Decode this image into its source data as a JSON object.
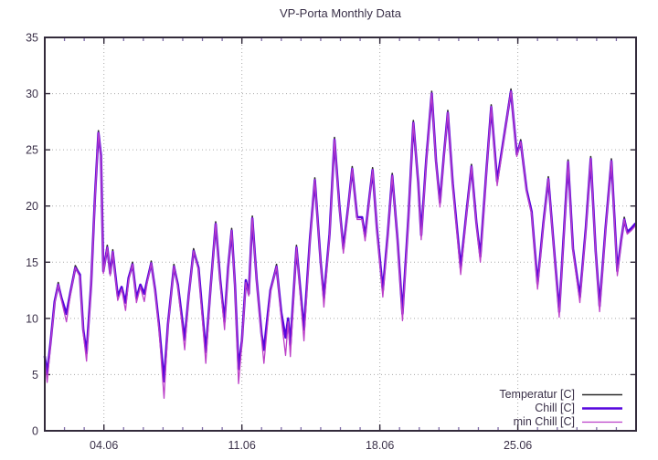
{
  "title": "VP-Porta Monthly Data",
  "legend": {
    "entries": [
      {
        "label": "Temperatur [C]",
        "color": "#2b2b2b",
        "width": 1.6
      },
      {
        "label": "Chill [C]",
        "color": "#5606dd",
        "width": 2.6
      },
      {
        "label": "min Chill [C]",
        "color": "#bb3fc8",
        "width": 1.3
      }
    ]
  },
  "chart_data": {
    "type": "line",
    "title": "VP-Porta Monthly Data",
    "xlabel": "",
    "ylabel": "",
    "x_unit": "day of June (decimal day of month)",
    "xlim": [
      1,
      31
    ],
    "ylim": [
      0,
      35
    ],
    "grid": true,
    "legend_position": "bottom-right",
    "xticks": [
      {
        "day": 4,
        "label": "04.06"
      },
      {
        "day": 11,
        "label": "11.06"
      },
      {
        "day": 18,
        "label": "18.06"
      },
      {
        "day": 25,
        "label": "25.06"
      }
    ],
    "x_minor_step": 1,
    "yticks": [
      0,
      5,
      10,
      15,
      20,
      25,
      30,
      35
    ],
    "x": [
      1.0,
      1.12,
      1.3,
      1.5,
      1.68,
      1.85,
      2.1,
      2.3,
      2.55,
      2.78,
      2.95,
      3.12,
      3.35,
      3.55,
      3.72,
      3.85,
      3.97,
      4.17,
      4.32,
      4.45,
      4.7,
      4.9,
      5.1,
      5.25,
      5.45,
      5.65,
      5.85,
      6.05,
      6.2,
      6.4,
      6.6,
      6.8,
      7.05,
      7.25,
      7.55,
      7.75,
      8.1,
      8.3,
      8.55,
      8.8,
      9.17,
      9.4,
      9.67,
      9.9,
      10.12,
      10.3,
      10.48,
      10.65,
      10.83,
      11.0,
      11.2,
      11.35,
      11.53,
      11.75,
      12.0,
      12.12,
      12.45,
      12.76,
      13.0,
      13.22,
      13.35,
      13.46,
      13.77,
      14.15,
      14.45,
      14.7,
      15.0,
      15.16,
      15.45,
      15.7,
      15.95,
      16.15,
      16.4,
      16.6,
      16.85,
      17.1,
      17.25,
      17.45,
      17.63,
      17.85,
      18.15,
      18.4,
      18.63,
      18.9,
      19.15,
      19.45,
      19.7,
      19.95,
      20.1,
      20.35,
      20.63,
      20.85,
      21.05,
      21.25,
      21.45,
      21.7,
      22.1,
      22.4,
      22.65,
      22.9,
      23.1,
      23.4,
      23.65,
      23.95,
      24.2,
      24.65,
      24.95,
      25.15,
      25.45,
      25.7,
      26.0,
      26.3,
      26.55,
      26.8,
      27.1,
      27.35,
      27.55,
      27.8,
      28.15,
      28.45,
      28.7,
      28.95,
      29.15,
      29.45,
      29.75,
      30.05,
      30.25,
      30.4,
      30.55,
      30.75,
      30.95
    ],
    "series": [
      {
        "name": "Temperatur [C]",
        "color": "#2b2b2b",
        "width": 1.6,
        "values": [
          6.6,
          5.1,
          8.0,
          11.5,
          13.2,
          11.8,
          10.4,
          12.3,
          14.7,
          13.9,
          9.0,
          6.9,
          13.0,
          21.0,
          26.7,
          24.5,
          14.2,
          16.5,
          14.0,
          16.1,
          12.0,
          12.8,
          11.4,
          13.6,
          15.0,
          11.8,
          13.0,
          12.2,
          13.4,
          15.1,
          12.5,
          9.3,
          4.4,
          9.5,
          14.8,
          13.0,
          8.1,
          12.0,
          16.2,
          14.5,
          7.0,
          12.5,
          18.6,
          13.5,
          9.7,
          14.5,
          18.0,
          13.0,
          5.5,
          8.0,
          13.4,
          12.2,
          19.1,
          13.5,
          8.6,
          7.2,
          12.5,
          14.8,
          10.5,
          8.3,
          10.0,
          7.6,
          16.5,
          9.0,
          17.0,
          22.5,
          15.0,
          11.8,
          17.5,
          26.1,
          20.0,
          16.2,
          20.0,
          23.5,
          19.0,
          19.0,
          17.3,
          20.5,
          23.4,
          18.0,
          12.5,
          17.5,
          22.9,
          17.0,
          10.4,
          19.0,
          27.6,
          22.0,
          17.4,
          24.0,
          30.2,
          24.0,
          20.3,
          24.5,
          28.5,
          22.0,
          14.5,
          19.5,
          23.7,
          18.5,
          15.5,
          23.0,
          29.0,
          22.2,
          25.0,
          30.4,
          24.6,
          25.9,
          21.4,
          19.5,
          13.1,
          18.5,
          22.6,
          17.0,
          10.6,
          18.0,
          24.1,
          16.2,
          11.9,
          18.0,
          24.4,
          16.0,
          11.1,
          18.0,
          24.2,
          14.2,
          17.0,
          19.0,
          17.7,
          18.0,
          18.4
        ]
      },
      {
        "name": "Chill [C]",
        "color": "#5606dd",
        "width": 2.6,
        "values": [
          6.6,
          5.1,
          8.0,
          11.5,
          13.0,
          11.8,
          10.4,
          12.3,
          14.5,
          13.9,
          9.0,
          6.9,
          13.0,
          21.0,
          26.5,
          24.5,
          14.2,
          16.3,
          14.0,
          15.9,
          12.0,
          12.8,
          11.4,
          13.6,
          14.8,
          11.8,
          13.0,
          12.2,
          13.4,
          14.9,
          12.5,
          9.3,
          4.4,
          9.5,
          14.6,
          13.0,
          8.1,
          12.0,
          16.0,
          14.5,
          7.0,
          12.5,
          18.4,
          13.5,
          9.7,
          14.5,
          17.8,
          13.0,
          5.5,
          8.0,
          13.4,
          12.2,
          18.9,
          13.5,
          8.6,
          7.2,
          12.5,
          14.6,
          10.5,
          8.3,
          10.0,
          7.6,
          16.3,
          9.0,
          17.0,
          22.3,
          15.0,
          11.8,
          17.5,
          25.9,
          20.0,
          16.2,
          20.0,
          23.3,
          19.0,
          19.0,
          17.3,
          20.5,
          23.2,
          18.0,
          12.5,
          17.5,
          22.7,
          17.0,
          10.4,
          19.0,
          27.4,
          22.0,
          17.4,
          24.0,
          30.0,
          24.0,
          20.3,
          24.5,
          28.3,
          22.0,
          14.5,
          19.5,
          23.5,
          18.5,
          15.5,
          23.0,
          28.8,
          22.2,
          25.0,
          30.2,
          24.6,
          25.7,
          21.4,
          19.5,
          13.1,
          18.5,
          22.4,
          17.0,
          10.6,
          18.0,
          23.9,
          16.2,
          11.9,
          18.0,
          24.2,
          16.0,
          11.1,
          18.0,
          24.0,
          14.2,
          17.0,
          18.8,
          17.7,
          18.0,
          18.4
        ]
      },
      {
        "name": "min Chill [C]",
        "color": "#bb3fc8",
        "width": 1.3,
        "values": [
          6.4,
          4.3,
          7.8,
          11.3,
          13.0,
          11.6,
          9.7,
          12.1,
          14.5,
          13.7,
          8.7,
          6.2,
          12.8,
          20.8,
          26.5,
          24.3,
          14.0,
          16.3,
          13.8,
          15.9,
          11.6,
          12.6,
          10.7,
          13.4,
          14.8,
          11.4,
          12.8,
          11.5,
          13.2,
          14.9,
          12.3,
          8.9,
          2.9,
          9.2,
          14.6,
          12.8,
          7.2,
          11.8,
          16.0,
          14.3,
          6.0,
          12.3,
          18.4,
          13.2,
          9.0,
          14.3,
          17.8,
          12.7,
          4.2,
          7.7,
          13.2,
          12.0,
          18.9,
          13.3,
          8.2,
          6.0,
          12.3,
          14.6,
          10.0,
          6.7,
          9.7,
          6.6,
          16.3,
          8.0,
          16.8,
          22.3,
          14.8,
          11.0,
          17.3,
          25.9,
          19.8,
          15.8,
          19.8,
          23.3,
          18.8,
          18.8,
          16.9,
          20.3,
          23.2,
          17.8,
          11.9,
          17.3,
          22.7,
          16.8,
          9.8,
          18.8,
          27.4,
          21.8,
          17.0,
          23.8,
          30.0,
          23.8,
          19.9,
          24.3,
          28.3,
          21.8,
          13.9,
          19.3,
          23.5,
          18.3,
          15.0,
          22.8,
          28.8,
          21.8,
          24.8,
          30.2,
          24.4,
          25.7,
          21.2,
          19.3,
          12.6,
          18.3,
          22.4,
          16.8,
          10.1,
          17.8,
          23.9,
          16.0,
          11.4,
          17.8,
          24.2,
          15.8,
          10.6,
          17.8,
          24.0,
          13.8,
          16.8,
          18.8,
          17.5,
          17.8,
          18.2
        ]
      }
    ]
  }
}
